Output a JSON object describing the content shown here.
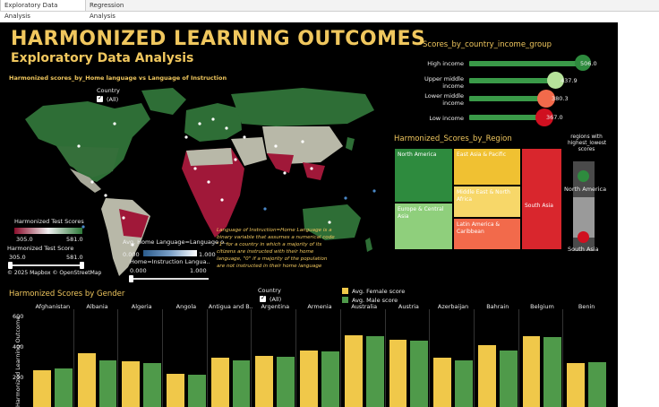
{
  "tabs": [
    {
      "label": "Exploratory Data Analysis",
      "active": true
    },
    {
      "label": "Regression Analysis",
      "active": false
    }
  ],
  "header": {
    "title": "HARMONIZED LEARNING OUTCOMES",
    "subtitle": "Exploratory Data Analysis"
  },
  "map": {
    "title": "Harmonized scores_by_Home language vs Language of Instruction",
    "country_filter_label": "Country",
    "country_filter_value": "(All)",
    "legend_scores_title": "Harmonized Test Scores",
    "legend_scores_min": "305.0",
    "legend_scores_max": "581.0",
    "slider_title": "Harmonized Test Score",
    "slider_min": "305.0",
    "slider_max": "581.0",
    "attribution": "© 2025 Mapbox  © OpenStreetMap",
    "avg_lang_title": "Avg. Home Language=Language o..",
    "avg_lang_min": "0.000",
    "avg_lang_max": "1.000",
    "lang_slider_title": "Home=Instruction Langua..",
    "lang_slider_min": "0.000",
    "lang_slider_max": "1.000",
    "note": "Language of Instruction=Home Language is a binary variable that assumes a numerical code \"1\" for a country in which a majority of its citizens are instructed with their home language, \"0\" if a majority of the population are not instructed in their home language"
  },
  "income": {
    "title": "Scores_by_country_income_group",
    "groups": [
      {
        "label": "High income",
        "value": "506.0",
        "color": "#2e8b3e"
      },
      {
        "label": "Upper middle income",
        "value": "437.9",
        "color": "#b6e39a"
      },
      {
        "label": "Lower middle income",
        "value": "380.3",
        "color": "#f26a4b"
      },
      {
        "label": "Low income",
        "value": "367.0",
        "color": "#d01020"
      }
    ]
  },
  "region": {
    "title": "Harmonized_Scores_by_Region",
    "cells": [
      {
        "label": "North America",
        "color": "#2e8b3e"
      },
      {
        "label": "East Asia & Pacific",
        "color": "#f0c132"
      },
      {
        "label": "Europe & Central Asia",
        "color": "#8fcf7c"
      },
      {
        "label": "Middle East & North Africa",
        "color": "#f7d769"
      },
      {
        "label": "Latin America & Caribbean",
        "color": "#f26a4b"
      },
      {
        "label": "South Asia",
        "color": "#d9262d"
      }
    ],
    "extremes_title": "regions with highest_lowest scores",
    "extreme_high": "North America",
    "extreme_low": "South Asia"
  },
  "gender": {
    "title": "Harmonized Scores by Gender",
    "country_filter_label": "Country",
    "country_filter_value": "(All)",
    "legend_female": "Avg. Female score",
    "legend_male": "Avg. Male score",
    "female_color": "#f0c84a",
    "male_color": "#4f9a4a",
    "y_axis_label": "Harmonized Learning Outcome",
    "y_ticks": [
      "600",
      "400",
      "200"
    ]
  },
  "chart_data": {
    "type": "bar",
    "title": "Harmonized Scores by Gender",
    "ylabel": "Harmonized Learning Outcome",
    "categories": [
      "Afghanistan",
      "Albania",
      "Algeria",
      "Angola",
      "Antigua and B..",
      "Argentina",
      "Armenia",
      "Australia",
      "Austria",
      "Azerbaijan",
      "Bahrain",
      "Belgium",
      "Benin"
    ],
    "series": [
      {
        "name": "Avg. Female score",
        "values": [
          345,
          435,
          395,
          325,
          410,
          420,
          450,
          535,
          510,
          410,
          480,
          530,
          385
        ]
      },
      {
        "name": "Avg. Male score",
        "values": [
          355,
          400,
          385,
          322,
          400,
          415,
          445,
          530,
          505,
          400,
          450,
          525,
          390
        ]
      }
    ],
    "ylim": [
      0,
      650
    ]
  }
}
